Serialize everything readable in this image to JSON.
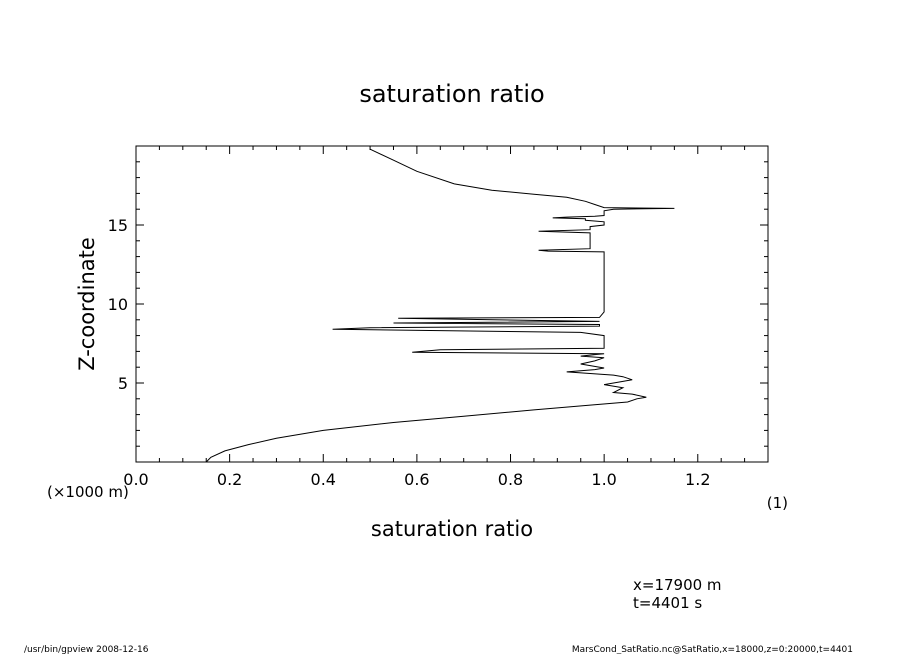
{
  "chart_data": {
    "type": "line",
    "title": "saturation ratio",
    "xlabel": "saturation ratio",
    "ylabel": "Z-coordinate",
    "xunit": "(1)",
    "yunit": "(×1000 m)",
    "xlim": [
      0,
      1.35
    ],
    "ylim": [
      0,
      20
    ],
    "xticks": [
      "0.0",
      "0.2",
      "0.4",
      "0.6",
      "0.8",
      "1.0",
      "1.2"
    ],
    "yticks": [
      "5",
      "10",
      "15"
    ],
    "grid": false,
    "series": [
      {
        "points": [
          [
            0.15,
            0.0
          ],
          [
            0.16,
            0.3
          ],
          [
            0.19,
            0.7
          ],
          [
            0.24,
            1.1
          ],
          [
            0.3,
            1.5
          ],
          [
            0.4,
            2.0
          ],
          [
            0.55,
            2.5
          ],
          [
            0.7,
            2.9
          ],
          [
            0.85,
            3.3
          ],
          [
            0.97,
            3.6
          ],
          [
            1.05,
            3.8
          ],
          [
            1.07,
            4.0
          ],
          [
            1.09,
            4.1
          ],
          [
            1.06,
            4.3
          ],
          [
            1.02,
            4.4
          ],
          [
            1.04,
            4.7
          ],
          [
            1.0,
            4.9
          ],
          [
            1.06,
            5.2
          ],
          [
            1.04,
            5.4
          ],
          [
            1.02,
            5.5
          ],
          [
            0.97,
            5.6
          ],
          [
            0.92,
            5.7
          ],
          [
            0.98,
            5.85
          ],
          [
            1.0,
            5.95
          ],
          [
            0.95,
            6.2
          ],
          [
            0.98,
            6.4
          ],
          [
            1.0,
            6.6
          ],
          [
            0.95,
            6.7
          ],
          [
            0.98,
            6.8
          ],
          [
            1.0,
            6.85
          ],
          [
            0.59,
            6.95
          ],
          [
            0.65,
            7.1
          ],
          [
            1.0,
            7.2
          ],
          [
            1.0,
            8.0
          ],
          [
            0.95,
            8.2
          ],
          [
            0.42,
            8.4
          ],
          [
            0.5,
            8.5
          ],
          [
            0.99,
            8.6
          ],
          [
            0.99,
            8.7
          ],
          [
            0.55,
            8.8
          ],
          [
            0.99,
            8.9
          ],
          [
            0.56,
            9.1
          ],
          [
            0.99,
            9.15
          ],
          [
            1.0,
            9.5
          ],
          [
            1.0,
            10.5
          ],
          [
            1.0,
            11.5
          ],
          [
            1.0,
            12.5
          ],
          [
            1.0,
            13.3
          ],
          [
            0.88,
            13.35
          ],
          [
            0.86,
            13.4
          ],
          [
            0.97,
            13.5
          ],
          [
            0.97,
            14.5
          ],
          [
            0.86,
            14.6
          ],
          [
            0.97,
            14.7
          ],
          [
            0.97,
            14.9
          ],
          [
            1.0,
            15.0
          ],
          [
            1.0,
            15.2
          ],
          [
            0.96,
            15.3
          ],
          [
            0.96,
            15.4
          ],
          [
            0.89,
            15.45
          ],
          [
            0.92,
            15.5
          ],
          [
            0.98,
            15.55
          ],
          [
            1.0,
            15.6
          ],
          [
            1.0,
            15.9
          ],
          [
            1.02,
            16.0
          ],
          [
            1.15,
            16.05
          ],
          [
            1.0,
            16.1
          ],
          [
            0.98,
            16.3
          ],
          [
            0.96,
            16.5
          ],
          [
            0.92,
            16.75
          ],
          [
            0.85,
            16.95
          ],
          [
            0.76,
            17.2
          ],
          [
            0.68,
            17.6
          ],
          [
            0.6,
            18.4
          ],
          [
            0.55,
            19.1
          ],
          [
            0.5,
            19.8
          ]
        ]
      }
    ]
  },
  "annotations": {
    "position_x": "x=17900 m",
    "time": "t=4401 s"
  },
  "footer": {
    "left": "/usr/bin/gpview   2008-12-16",
    "right": "MarsCond_SatRatio.nc@SatRatio,x=18000,z=0:20000,t=4401"
  }
}
